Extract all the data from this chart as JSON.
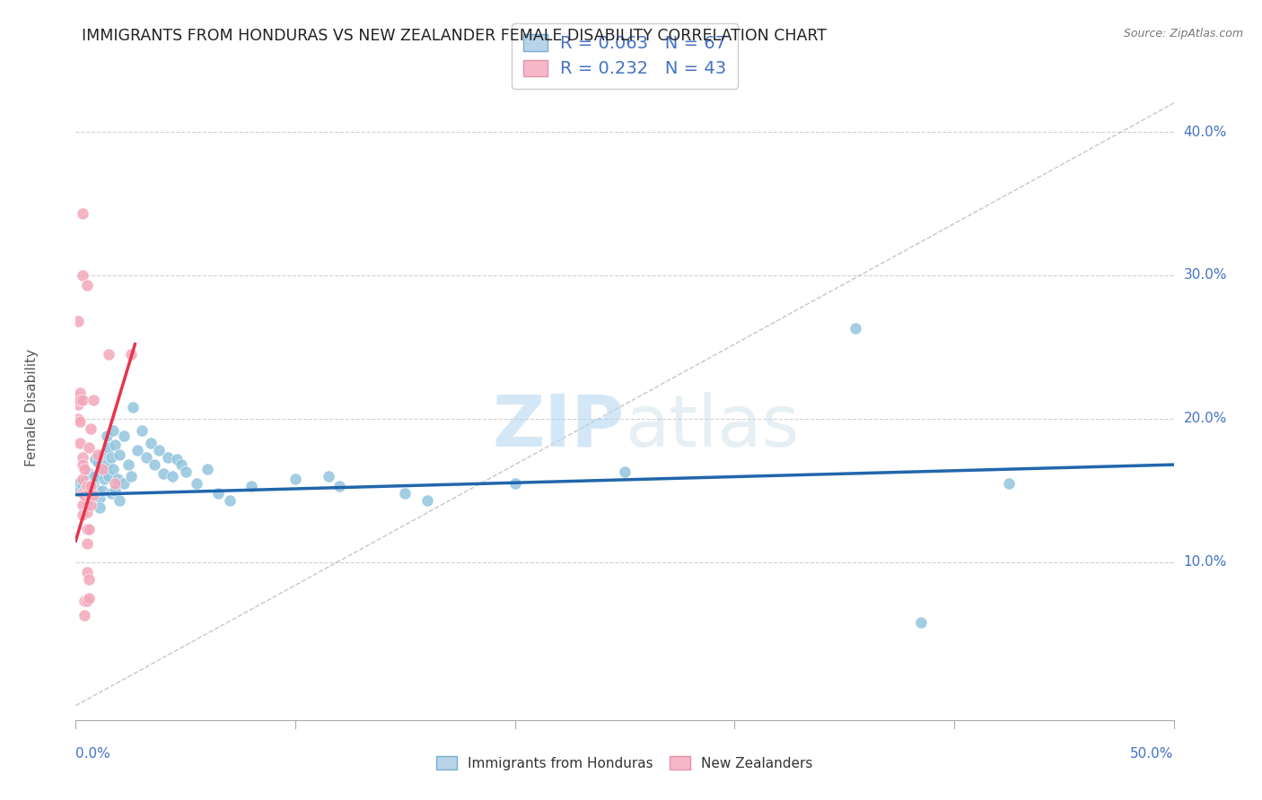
{
  "title": "IMMIGRANTS FROM HONDURAS VS NEW ZEALANDER FEMALE DISABILITY CORRELATION CHART",
  "source": "Source: ZipAtlas.com",
  "ylabel": "Female Disability",
  "y_ticks": [
    0.0,
    0.1,
    0.2,
    0.3,
    0.4
  ],
  "y_tick_labels": [
    "",
    "10.0%",
    "20.0%",
    "30.0%",
    "40.0%"
  ],
  "xlim": [
    0.0,
    0.5
  ],
  "ylim": [
    -0.01,
    0.425
  ],
  "blue_color": "#92c5de",
  "pink_color": "#f4a7b9",
  "trendline_blue_color": "#2166ac",
  "trendline_pink_color": "#e8334a",
  "blue_scatter": [
    [
      0.001,
      0.155
    ],
    [
      0.002,
      0.15
    ],
    [
      0.003,
      0.153
    ],
    [
      0.004,
      0.15
    ],
    [
      0.005,
      0.148
    ],
    [
      0.005,
      0.143
    ],
    [
      0.005,
      0.158
    ],
    [
      0.006,
      0.162
    ],
    [
      0.006,
      0.157
    ],
    [
      0.007,
      0.152
    ],
    [
      0.007,
      0.148
    ],
    [
      0.008,
      0.16
    ],
    [
      0.008,
      0.155
    ],
    [
      0.009,
      0.172
    ],
    [
      0.009,
      0.16
    ],
    [
      0.01,
      0.17
    ],
    [
      0.01,
      0.15
    ],
    [
      0.011,
      0.145
    ],
    [
      0.011,
      0.138
    ],
    [
      0.012,
      0.175
    ],
    [
      0.012,
      0.15
    ],
    [
      0.013,
      0.165
    ],
    [
      0.013,
      0.158
    ],
    [
      0.014,
      0.188
    ],
    [
      0.014,
      0.168
    ],
    [
      0.015,
      0.18
    ],
    [
      0.015,
      0.16
    ],
    [
      0.016,
      0.173
    ],
    [
      0.016,
      0.148
    ],
    [
      0.017,
      0.192
    ],
    [
      0.017,
      0.165
    ],
    [
      0.018,
      0.182
    ],
    [
      0.018,
      0.15
    ],
    [
      0.019,
      0.158
    ],
    [
      0.02,
      0.175
    ],
    [
      0.02,
      0.143
    ],
    [
      0.022,
      0.188
    ],
    [
      0.022,
      0.155
    ],
    [
      0.024,
      0.168
    ],
    [
      0.025,
      0.16
    ],
    [
      0.026,
      0.208
    ],
    [
      0.028,
      0.178
    ],
    [
      0.03,
      0.192
    ],
    [
      0.032,
      0.173
    ],
    [
      0.034,
      0.183
    ],
    [
      0.036,
      0.168
    ],
    [
      0.038,
      0.178
    ],
    [
      0.04,
      0.162
    ],
    [
      0.042,
      0.173
    ],
    [
      0.044,
      0.16
    ],
    [
      0.046,
      0.172
    ],
    [
      0.048,
      0.168
    ],
    [
      0.05,
      0.163
    ],
    [
      0.055,
      0.155
    ],
    [
      0.06,
      0.165
    ],
    [
      0.065,
      0.148
    ],
    [
      0.07,
      0.143
    ],
    [
      0.08,
      0.153
    ],
    [
      0.1,
      0.158
    ],
    [
      0.115,
      0.16
    ],
    [
      0.12,
      0.153
    ],
    [
      0.15,
      0.148
    ],
    [
      0.16,
      0.143
    ],
    [
      0.2,
      0.155
    ],
    [
      0.25,
      0.163
    ],
    [
      0.355,
      0.263
    ],
    [
      0.385,
      0.058
    ],
    [
      0.425,
      0.155
    ]
  ],
  "pink_scatter": [
    [
      0.001,
      0.268
    ],
    [
      0.001,
      0.215
    ],
    [
      0.001,
      0.21
    ],
    [
      0.001,
      0.2
    ],
    [
      0.002,
      0.218
    ],
    [
      0.002,
      0.213
    ],
    [
      0.002,
      0.198
    ],
    [
      0.002,
      0.183
    ],
    [
      0.003,
      0.3
    ],
    [
      0.003,
      0.213
    ],
    [
      0.003,
      0.173
    ],
    [
      0.003,
      0.168
    ],
    [
      0.003,
      0.158
    ],
    [
      0.003,
      0.148
    ],
    [
      0.003,
      0.14
    ],
    [
      0.003,
      0.133
    ],
    [
      0.003,
      0.343
    ],
    [
      0.004,
      0.165
    ],
    [
      0.004,
      0.147
    ],
    [
      0.004,
      0.073
    ],
    [
      0.004,
      0.063
    ],
    [
      0.005,
      0.293
    ],
    [
      0.005,
      0.153
    ],
    [
      0.005,
      0.135
    ],
    [
      0.005,
      0.123
    ],
    [
      0.005,
      0.113
    ],
    [
      0.005,
      0.093
    ],
    [
      0.005,
      0.073
    ],
    [
      0.006,
      0.18
    ],
    [
      0.006,
      0.148
    ],
    [
      0.006,
      0.123
    ],
    [
      0.006,
      0.088
    ],
    [
      0.006,
      0.075
    ],
    [
      0.007,
      0.193
    ],
    [
      0.007,
      0.153
    ],
    [
      0.007,
      0.14
    ],
    [
      0.008,
      0.213
    ],
    [
      0.008,
      0.147
    ],
    [
      0.01,
      0.175
    ],
    [
      0.012,
      0.165
    ],
    [
      0.015,
      0.245
    ],
    [
      0.018,
      0.155
    ],
    [
      0.025,
      0.245
    ]
  ],
  "blue_trend_x": [
    0.0,
    0.5
  ],
  "blue_trend_y": [
    0.147,
    0.168
  ],
  "pink_trend_x": [
    0.0,
    0.027
  ],
  "pink_trend_y": [
    0.115,
    0.252
  ],
  "ref_line_x": [
    0.0,
    0.5
  ],
  "ref_line_y": [
    0.0,
    0.42
  ],
  "watermark_zip": "ZIP",
  "watermark_atlas": "atlas",
  "background_color": "#ffffff",
  "grid_color": "#d0d0d0",
  "title_color": "#222222",
  "axis_label_color": "#555555",
  "tick_label_color": "#4472c4",
  "legend_text_color": "#4472c4"
}
